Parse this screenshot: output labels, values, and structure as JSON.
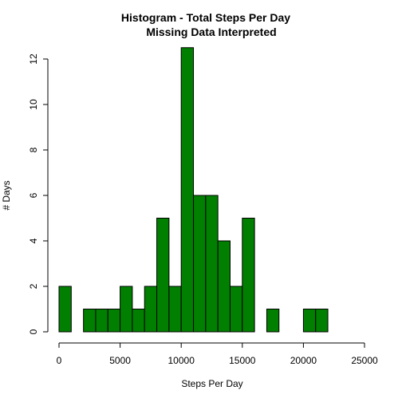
{
  "chart_data": {
    "type": "bar",
    "title": "Histogram - Total Steps Per Day",
    "subtitle": "Missing Data Interpreted",
    "xlabel": "Steps Per Day",
    "ylabel": "# Days",
    "bin_width": 1000,
    "bins": [
      {
        "x0": 0,
        "x1": 1000,
        "count": 2
      },
      {
        "x0": 1000,
        "x1": 2000,
        "count": 0
      },
      {
        "x0": 2000,
        "x1": 3000,
        "count": 1
      },
      {
        "x0": 3000,
        "x1": 4000,
        "count": 1
      },
      {
        "x0": 4000,
        "x1": 5000,
        "count": 1
      },
      {
        "x0": 5000,
        "x1": 6000,
        "count": 2
      },
      {
        "x0": 6000,
        "x1": 7000,
        "count": 1
      },
      {
        "x0": 7000,
        "x1": 8000,
        "count": 2
      },
      {
        "x0": 8000,
        "x1": 9000,
        "count": 5
      },
      {
        "x0": 9000,
        "x1": 10000,
        "count": 2
      },
      {
        "x0": 10000,
        "x1": 11000,
        "count": 12.5
      },
      {
        "x0": 11000,
        "x1": 12000,
        "count": 6
      },
      {
        "x0": 12000,
        "x1": 13000,
        "count": 6
      },
      {
        "x0": 13000,
        "x1": 14000,
        "count": 4
      },
      {
        "x0": 14000,
        "x1": 15000,
        "count": 2
      },
      {
        "x0": 15000,
        "x1": 16000,
        "count": 5
      },
      {
        "x0": 16000,
        "x1": 17000,
        "count": 0
      },
      {
        "x0": 17000,
        "x1": 18000,
        "count": 1
      },
      {
        "x0": 18000,
        "x1": 19000,
        "count": 0
      },
      {
        "x0": 19000,
        "x1": 20000,
        "count": 0
      },
      {
        "x0": 20000,
        "x1": 21000,
        "count": 1
      },
      {
        "x0": 21000,
        "x1": 22000,
        "count": 1
      }
    ],
    "xlim": [
      0,
      25000
    ],
    "ylim": [
      0,
      12
    ],
    "xticks": [
      0,
      5000,
      10000,
      15000,
      20000,
      25000
    ],
    "yticks": [
      0,
      2,
      4,
      6,
      8,
      10,
      12
    ],
    "bar_color": "#007f00",
    "grid": false,
    "legend": "none"
  }
}
